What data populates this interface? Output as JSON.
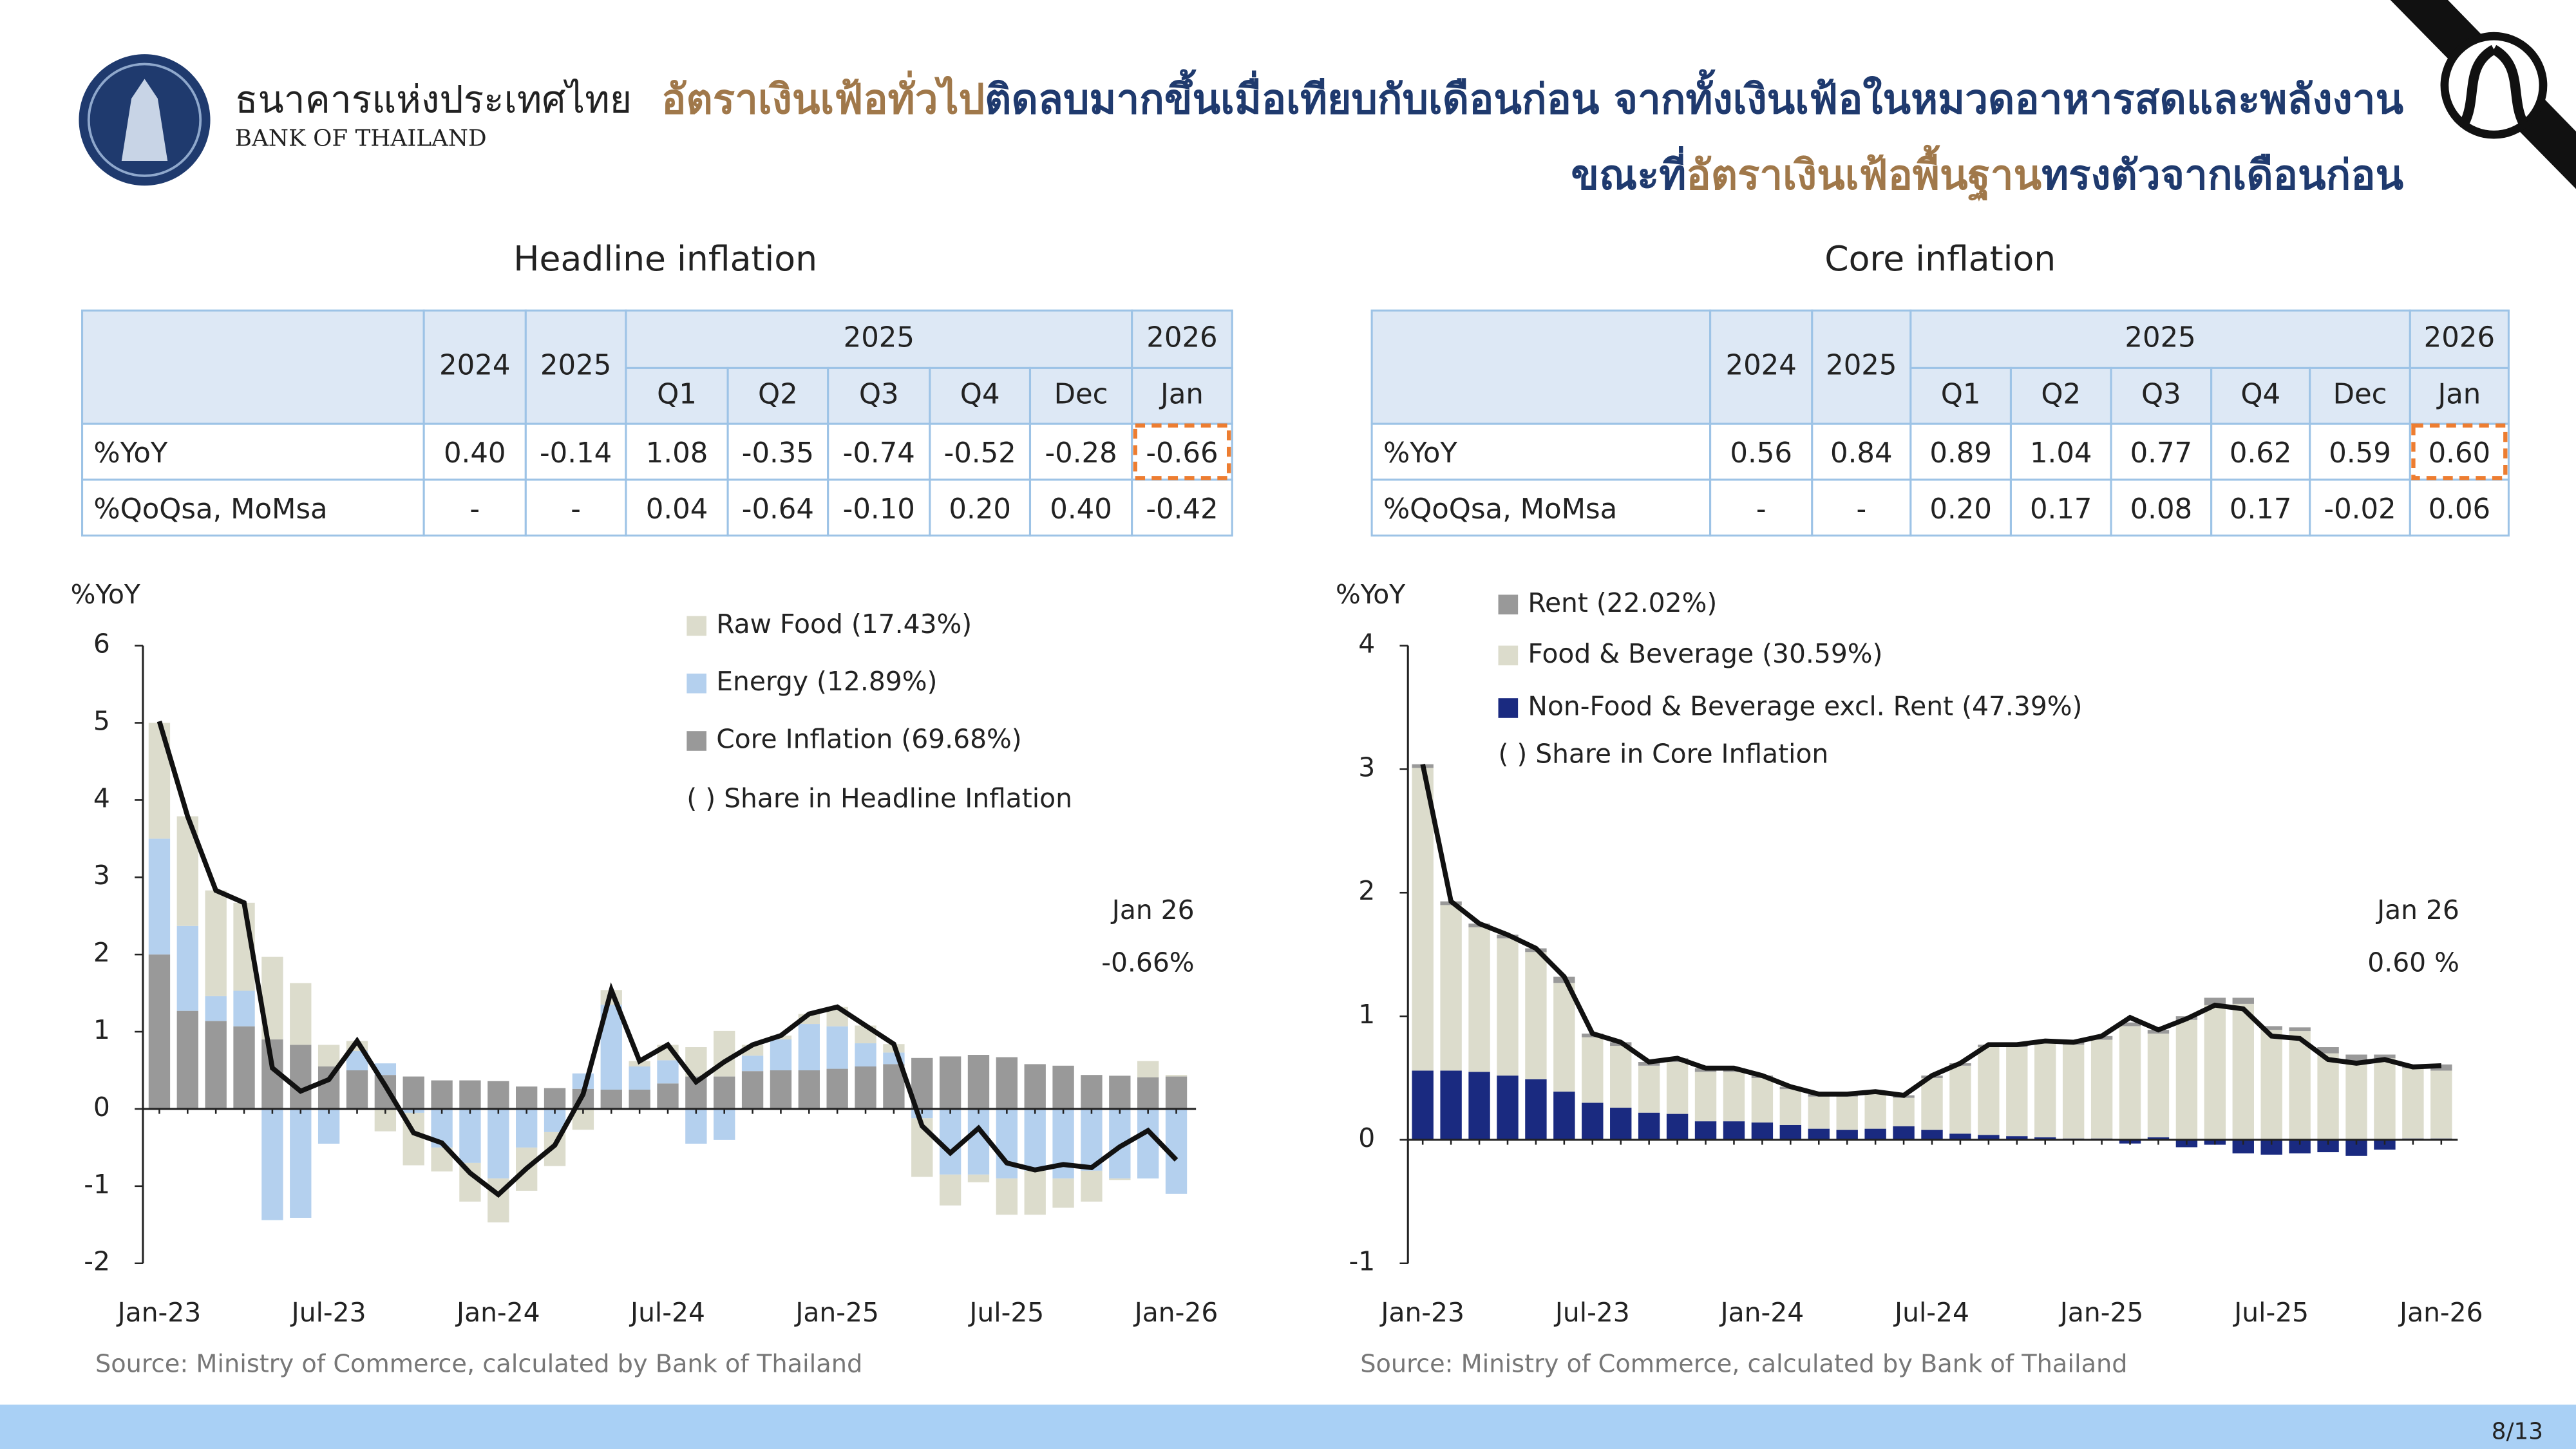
{
  "header": {
    "bank_name_th": "ธนาคารแห่งประเทศไทย",
    "bank_name_en": "BANK OF THAILAND",
    "line1": [
      {
        "text": "อัตราเงินเฟ้อทั่วไป",
        "color": "#a0784a"
      },
      {
        "text": "ติดลบมากขึ้นเมื่อเทียบกับเดือนก่อน จากทั้งเงินเฟ้อในหมวดอาหารสดและพลังงาน",
        "color": "#1f3a6e"
      }
    ],
    "line2": [
      {
        "text": "ขณะที่",
        "color": "#1f3a6e"
      },
      {
        "text": "อัตราเงินเฟ้อพื้นฐาน",
        "color": "#a0784a"
      },
      {
        "text": "ทรงตัวจากเดือนก่อน",
        "color": "#1f3a6e"
      }
    ]
  },
  "tables": [
    {
      "top_headers": [
        "2024",
        "2025",
        "2025",
        "2026"
      ],
      "sub_headers": [
        "Q1",
        "Q2",
        "Q3",
        "Q4",
        "Dec",
        "Jan"
      ],
      "rows": [
        {
          "label": "%YoY",
          "values": [
            "0.40",
            "-0.14",
            "1.08",
            "-0.35",
            "-0.74",
            "-0.52",
            "-0.28",
            "-0.66"
          ]
        },
        {
          "label": "%QoQsa, MoMsa",
          "values": [
            "-",
            "-",
            "0.04",
            "-0.64",
            "-0.10",
            "0.20",
            "0.40",
            "-0.42"
          ]
        }
      ]
    },
    {
      "top_headers": [
        "2024",
        "2025",
        "2025",
        "2026"
      ],
      "sub_headers": [
        "Q1",
        "Q2",
        "Q3",
        "Q4",
        "Dec",
        "Jan"
      ],
      "rows": [
        {
          "label": "%YoY",
          "values": [
            "0.56",
            "0.84",
            "0.89",
            "1.04",
            "0.77",
            "0.62",
            "0.59",
            "0.60"
          ]
        },
        {
          "label": "%QoQsa, MoMsa",
          "values": [
            "-",
            "-",
            "0.20",
            "0.17",
            "0.08",
            "0.17",
            "-0.02",
            "0.06"
          ]
        }
      ]
    }
  ],
  "chart_data": [
    {
      "type": "bar",
      "stacked": true,
      "title": "Headline inflation",
      "ylabel": "%YoY",
      "categories": [
        "Jan-23",
        null,
        null,
        null,
        null,
        null,
        "Jul-23",
        null,
        null,
        null,
        null,
        null,
        "Jan-24",
        null,
        null,
        null,
        null,
        null,
        "Jul-24",
        null,
        null,
        null,
        null,
        null,
        "Jan-25",
        null,
        null,
        null,
        null,
        null,
        "Jul-25",
        null,
        null,
        null,
        null,
        null,
        "Jan-26"
      ],
      "series": [
        {
          "name": "Core Inflation (69.68%)",
          "color": "#999999",
          "values": [
            2.0,
            1.27,
            1.14,
            1.07,
            0.9,
            0.83,
            0.55,
            0.5,
            0.44,
            0.42,
            0.37,
            0.37,
            0.36,
            0.29,
            0.27,
            0.26,
            0.25,
            0.25,
            0.33,
            0.42,
            0.42,
            0.49,
            0.5,
            0.5,
            0.52,
            0.55,
            0.58,
            0.66,
            0.68,
            0.7,
            0.67,
            0.58,
            0.56,
            0.44,
            0.43,
            0.41,
            0.42
          ]
        },
        {
          "name": "Energy (12.89%)",
          "color": "#b4d0ee",
          "values": [
            1.5,
            1.1,
            0.32,
            0.46,
            -1.44,
            -1.41,
            -0.45,
            0.25,
            0.15,
            -0.05,
            -0.5,
            -0.7,
            -0.9,
            -0.5,
            -0.3,
            0.2,
            1.1,
            0.3,
            0.3,
            -0.45,
            -0.4,
            0.2,
            0.4,
            0.6,
            0.55,
            0.3,
            0.15,
            -0.12,
            -0.85,
            -0.85,
            -0.9,
            -0.8,
            -0.9,
            -0.8,
            -0.9,
            -0.9,
            -1.1
          ]
        },
        {
          "name": "Raw Food (17.43%)",
          "color": "#dcdccc",
          "values": [
            1.5,
            1.42,
            1.37,
            1.14,
            1.07,
            0.8,
            0.28,
            0.13,
            -0.29,
            -0.68,
            -0.31,
            -0.5,
            -0.57,
            -0.56,
            -0.44,
            -0.27,
            0.19,
            0.07,
            0.2,
            0.38,
            0.59,
            0.14,
            0.05,
            0.13,
            0.25,
            0.23,
            0.11,
            -0.76,
            -0.4,
            -0.1,
            -0.47,
            -0.57,
            -0.38,
            -0.4,
            -0.02,
            0.21,
            0.02
          ]
        }
      ],
      "legend_order": [
        2,
        1,
        0
      ],
      "legend_note": "( ) Share in Headline Inflation",
      "line": {
        "color": "#111111",
        "values": [
          5.02,
          3.79,
          2.83,
          2.67,
          0.53,
          0.23,
          0.38,
          0.88,
          0.3,
          -0.31,
          -0.44,
          -0.83,
          -1.11,
          -0.77,
          -0.47,
          0.19,
          1.54,
          0.62,
          0.83,
          0.35,
          0.61,
          0.83,
          0.95,
          1.23,
          1.32,
          1.08,
          0.84,
          -0.22,
          -0.57,
          -0.25,
          -0.7,
          -0.79,
          -0.72,
          -0.76,
          -0.49,
          -0.28,
          -0.66
        ]
      },
      "annotations": [
        "Jan 26",
        "-0.66%"
      ],
      "ylim": [
        -2,
        6
      ],
      "yticks": [
        -2,
        -1,
        0,
        1,
        2,
        3,
        4,
        5,
        6
      ],
      "source": "Source: Ministry of Commerce, calculated by Bank of Thailand"
    },
    {
      "type": "bar",
      "stacked": true,
      "title": "Core inflation",
      "ylabel": "%YoY",
      "categories": [
        "Jan-23",
        null,
        null,
        null,
        null,
        null,
        "Jul-23",
        null,
        null,
        null,
        null,
        null,
        "Jan-24",
        null,
        null,
        null,
        null,
        null,
        "Jul-24",
        null,
        null,
        null,
        null,
        null,
        "Jan-25",
        null,
        null,
        null,
        null,
        null,
        "Jul-25",
        null,
        null,
        null,
        null,
        null,
        "Jan-26"
      ],
      "series": [
        {
          "name": "Non-Food & Beverage excl. Rent (47.39%)",
          "color": "#1a2a80",
          "values": [
            0.56,
            0.56,
            0.55,
            0.52,
            0.49,
            0.39,
            0.3,
            0.26,
            0.22,
            0.21,
            0.15,
            0.15,
            0.14,
            0.12,
            0.09,
            0.08,
            0.09,
            0.11,
            0.08,
            0.05,
            0.04,
            0.03,
            0.02,
            0.01,
            0.01,
            -0.03,
            0.02,
            -0.06,
            -0.04,
            -0.11,
            -0.12,
            -0.11,
            -0.1,
            -0.13,
            -0.08,
            0.01,
            0.01
          ]
        },
        {
          "name": "Food & Beverage (30.59%)",
          "color": "#dcdccc",
          "values": [
            2.45,
            1.34,
            1.17,
            1.11,
            1.03,
            0.88,
            0.53,
            0.5,
            0.38,
            0.42,
            0.4,
            0.4,
            0.36,
            0.29,
            0.26,
            0.27,
            0.28,
            0.23,
            0.42,
            0.55,
            0.71,
            0.72,
            0.76,
            0.76,
            0.8,
            0.92,
            0.84,
            0.97,
            1.09,
            1.1,
            0.89,
            0.88,
            0.7,
            0.64,
            0.66,
            0.57,
            0.55
          ]
        },
        {
          "name": "Rent (22.02%)",
          "color": "#999999",
          "values": [
            0.03,
            0.03,
            0.03,
            0.03,
            0.03,
            0.05,
            0.03,
            0.03,
            0.03,
            0.03,
            0.03,
            0.03,
            0.02,
            0.02,
            0.02,
            0.02,
            0.02,
            0.02,
            0.02,
            0.02,
            0.02,
            0.02,
            0.02,
            0.02,
            0.03,
            0.03,
            0.03,
            0.03,
            0.06,
            0.05,
            0.03,
            0.03,
            0.05,
            0.05,
            0.03,
            0.03,
            0.05
          ]
        }
      ],
      "legend_order": [
        2,
        1,
        0
      ],
      "legend_note": "( ) Share in Core Inflation",
      "line": {
        "color": "#111111",
        "values": [
          3.04,
          1.93,
          1.75,
          1.66,
          1.55,
          1.32,
          0.86,
          0.79,
          0.63,
          0.66,
          0.58,
          0.58,
          0.52,
          0.43,
          0.37,
          0.37,
          0.39,
          0.36,
          0.52,
          0.62,
          0.77,
          0.77,
          0.8,
          0.79,
          0.84,
          0.99,
          0.89,
          0.98,
          1.09,
          1.06,
          0.84,
          0.82,
          0.65,
          0.62,
          0.65,
          0.59,
          0.6
        ]
      },
      "annotations": [
        "Jan 26",
        "0.60 %"
      ],
      "ylim": [
        -1,
        4
      ],
      "yticks": [
        -1,
        0,
        1,
        2,
        3,
        4
      ],
      "source": "Source: Ministry of Commerce, calculated by Bank of Thailand"
    }
  ],
  "page_number": "8/13"
}
